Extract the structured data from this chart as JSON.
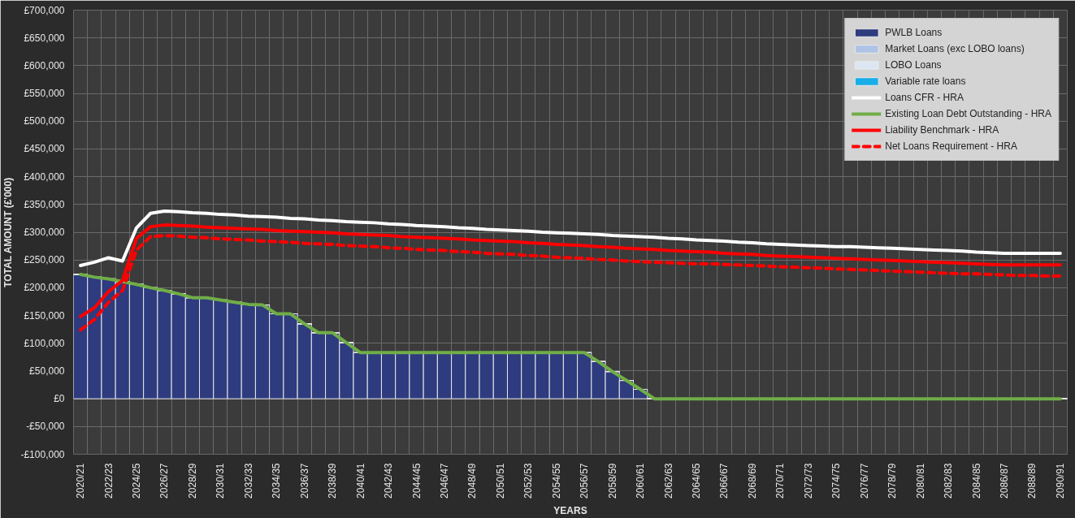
{
  "chart_data": {
    "type": "bar",
    "xlabel": "YEARS",
    "ylabel": "TOTAL AMOUNT (£'000)",
    "categories": [
      "2020/21",
      null,
      "2022/23",
      null,
      "2024/25",
      null,
      "2026/27",
      null,
      "2028/29",
      null,
      "2030/31",
      null,
      "2032/33",
      null,
      "2034/35",
      null,
      "2036/37",
      null,
      "2038/39",
      null,
      "2040/41",
      null,
      "2042/43",
      null,
      "2044/45",
      null,
      "2046/47",
      null,
      "2048/49",
      null,
      "2050/51",
      null,
      "2052/53",
      null,
      "2054/55",
      null,
      "2056/57",
      null,
      "2058/59",
      null,
      "2060/61",
      null,
      "2062/63",
      null,
      "2064/65",
      null,
      "2066/67",
      null,
      "2068/69",
      null,
      "2070/71",
      null,
      "2072/73",
      null,
      "2074/75",
      null,
      "2076/77",
      null,
      "2078/79",
      null,
      "2080/81",
      null,
      "2082/83",
      null,
      "2084/85",
      null,
      "2086/87",
      null,
      "2088/89",
      null,
      "2090/91"
    ],
    "stacked": true,
    "grid": true,
    "legend": "top right",
    "ylim": [
      -100000,
      700000
    ],
    "yticks": [
      {
        "value": -100000,
        "label": "-£100,000"
      },
      {
        "value": -50000,
        "label": "-£50,000"
      },
      {
        "value": 0,
        "label": "£0"
      },
      {
        "value": 50000,
        "label": "£50,000"
      },
      {
        "value": 100000,
        "label": "£100,000"
      },
      {
        "value": 150000,
        "label": "£150,000"
      },
      {
        "value": 200000,
        "label": "£200,000"
      },
      {
        "value": 250000,
        "label": "£250,000"
      },
      {
        "value": 300000,
        "label": "£300,000"
      },
      {
        "value": 350000,
        "label": "£350,000"
      },
      {
        "value": 400000,
        "label": "£400,000"
      },
      {
        "value": 450000,
        "label": "£450,000"
      },
      {
        "value": 500000,
        "label": "£500,000"
      },
      {
        "value": 550000,
        "label": "£550,000"
      },
      {
        "value": 600000,
        "label": "£600,000"
      },
      {
        "value": 650000,
        "label": "£650,000"
      },
      {
        "value": 700000,
        "label": "£700,000"
      }
    ],
    "series": [
      {
        "name": "PWLB Loans",
        "color": "#2e3b7e",
        "values": [
          224000,
          219000,
          216000,
          211000,
          206000,
          200000,
          195000,
          189000,
          182000,
          182000,
          178000,
          174000,
          170000,
          169000,
          153000,
          153000,
          135000,
          119000,
          119000,
          101000,
          83000,
          83000,
          83000,
          83000,
          83000,
          83000,
          83000,
          83000,
          83000,
          83000,
          83000,
          83000,
          83000,
          83000,
          83000,
          83000,
          83000,
          67000,
          49000,
          33000,
          17000,
          0,
          0,
          0,
          0,
          0,
          0,
          0,
          0,
          0,
          0,
          0,
          0,
          0,
          0,
          0,
          0,
          0,
          0,
          0,
          0,
          0,
          0,
          0,
          0,
          0,
          0,
          0,
          0,
          0,
          0
        ]
      },
      {
        "name": "Market Loans (exc LOBO loans)",
        "color": "#aec3e6",
        "values": [
          0,
          0,
          0,
          0,
          0,
          0,
          0,
          0,
          0,
          0,
          0,
          0,
          0,
          0,
          0,
          0,
          0,
          0,
          0,
          0,
          0,
          0,
          0,
          0,
          0,
          0,
          0,
          0,
          0,
          0,
          0,
          0,
          0,
          0,
          0,
          0,
          0,
          0,
          0,
          0,
          0,
          0,
          0,
          0,
          0,
          0,
          0,
          0,
          0,
          0,
          0,
          0,
          0,
          0,
          0,
          0,
          0,
          0,
          0,
          0,
          0,
          0,
          0,
          0,
          0,
          0,
          0,
          0,
          0,
          0,
          0
        ]
      },
      {
        "name": "LOBO Loans",
        "color": "#dde6f3",
        "values": [
          0,
          0,
          0,
          0,
          0,
          0,
          0,
          0,
          0,
          0,
          0,
          0,
          0,
          0,
          0,
          0,
          0,
          0,
          0,
          0,
          0,
          0,
          0,
          0,
          0,
          0,
          0,
          0,
          0,
          0,
          0,
          0,
          0,
          0,
          0,
          0,
          0,
          0,
          0,
          0,
          0,
          0,
          0,
          0,
          0,
          0,
          0,
          0,
          0,
          0,
          0,
          0,
          0,
          0,
          0,
          0,
          0,
          0,
          0,
          0,
          0,
          0,
          0,
          0,
          0,
          0,
          0,
          0,
          0,
          0,
          0
        ]
      },
      {
        "name": "Variable rate loans",
        "color": "#1aaee8",
        "values": [
          0,
          0,
          0,
          0,
          0,
          0,
          0,
          0,
          0,
          0,
          0,
          0,
          0,
          0,
          0,
          0,
          0,
          0,
          0,
          0,
          0,
          0,
          0,
          0,
          0,
          0,
          0,
          0,
          0,
          0,
          0,
          0,
          0,
          0,
          0,
          0,
          0,
          0,
          0,
          0,
          0,
          0,
          0,
          0,
          0,
          0,
          0,
          0,
          0,
          0,
          0,
          0,
          0,
          0,
          0,
          0,
          0,
          0,
          0,
          0,
          0,
          0,
          0,
          0,
          0,
          0,
          0,
          0,
          0,
          0,
          0
        ]
      },
      {
        "name": "Loans CFR - HRA",
        "type": "line",
        "line_style": "solid",
        "color": "#ffffff",
        "values": [
          240000,
          246000,
          254000,
          248000,
          308000,
          334000,
          338000,
          337000,
          335000,
          334000,
          332000,
          331000,
          329000,
          328000,
          327000,
          325000,
          324000,
          322000,
          321000,
          319000,
          318000,
          317000,
          315000,
          314000,
          312000,
          311000,
          310000,
          308000,
          307000,
          305000,
          304000,
          303000,
          302000,
          300000,
          299000,
          298000,
          297000,
          296000,
          294000,
          293000,
          292000,
          291000,
          289000,
          288000,
          286000,
          285000,
          284000,
          282000,
          281000,
          279000,
          278000,
          277000,
          276000,
          275000,
          274000,
          274000,
          273000,
          272000,
          271000,
          270000,
          269000,
          268000,
          267000,
          266000,
          264000,
          263000,
          262000,
          262000,
          262000,
          262000,
          262000
        ]
      },
      {
        "name": "Existing Loan Debt Outstanding - HRA",
        "type": "line",
        "line_style": "solid",
        "color": "#70ad47",
        "values": [
          224000,
          219000,
          216000,
          211000,
          206000,
          200000,
          195000,
          189000,
          182000,
          182000,
          178000,
          174000,
          170000,
          169000,
          153000,
          153000,
          135000,
          119000,
          119000,
          101000,
          83000,
          83000,
          83000,
          83000,
          83000,
          83000,
          83000,
          83000,
          83000,
          83000,
          83000,
          83000,
          83000,
          83000,
          83000,
          83000,
          83000,
          67000,
          49000,
          33000,
          17000,
          0,
          0,
          0,
          0,
          0,
          0,
          0,
          0,
          0,
          0,
          0,
          0,
          0,
          0,
          0,
          0,
          0,
          0,
          0,
          0,
          0,
          0,
          0,
          0,
          0,
          0,
          0,
          0,
          0,
          0
        ]
      },
      {
        "name": "Liability Benchmark - HRA",
        "type": "line",
        "line_style": "solid",
        "color": "#ff0000",
        "values": [
          148000,
          164000,
          193000,
          213000,
          289000,
          310000,
          313000,
          312000,
          311000,
          309000,
          308000,
          307000,
          306000,
          305000,
          303000,
          302000,
          301000,
          300000,
          299000,
          297000,
          296000,
          295000,
          294000,
          292000,
          291000,
          290000,
          289000,
          288000,
          286000,
          285000,
          284000,
          283000,
          281000,
          280000,
          278000,
          277000,
          276000,
          274000,
          273000,
          271000,
          270000,
          269000,
          267000,
          266000,
          265000,
          264000,
          262000,
          261000,
          260000,
          258000,
          257000,
          256000,
          255000,
          254000,
          253000,
          252000,
          251000,
          250000,
          249000,
          248000,
          247000,
          246000,
          245000,
          244000,
          243000,
          242000,
          241000,
          241000,
          241000,
          241000,
          241000
        ]
      },
      {
        "name": "Net Loans Requirement - HRA",
        "type": "line",
        "line_style": "dashed",
        "color": "#ff0000",
        "values": [
          124000,
          143000,
          174000,
          195000,
          268000,
          292000,
          294000,
          293000,
          291000,
          290000,
          288000,
          287000,
          286000,
          284000,
          283000,
          282000,
          280000,
          279000,
          278000,
          276000,
          275000,
          274000,
          272000,
          271000,
          269000,
          268000,
          267000,
          265000,
          264000,
          262000,
          261000,
          260000,
          258000,
          257000,
          255000,
          254000,
          253000,
          251000,
          250000,
          248000,
          247000,
          246000,
          245000,
          244000,
          243000,
          243000,
          242000,
          241000,
          240000,
          239000,
          238000,
          237000,
          236000,
          235000,
          234000,
          233000,
          232000,
          231000,
          230000,
          229000,
          228000,
          227000,
          226000,
          225000,
          225000,
          224000,
          223000,
          222000,
          222000,
          221000,
          221000
        ]
      }
    ]
  }
}
